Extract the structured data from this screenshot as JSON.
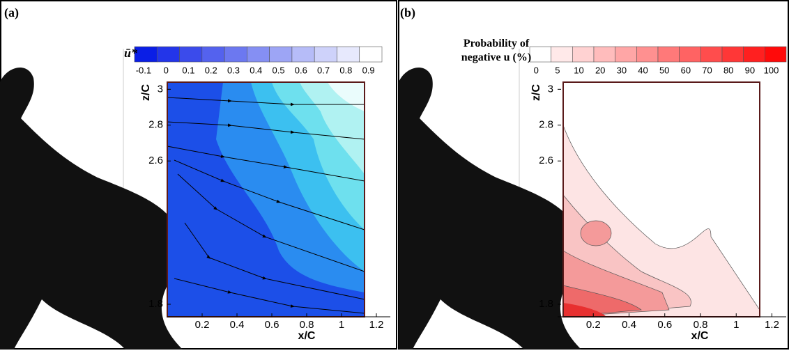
{
  "chart_data": [
    {
      "type": "contour",
      "panel_label": "(a)",
      "colorbar_label": "ū*",
      "colorbar_ticks": [
        -0.1,
        0,
        0.1,
        0.2,
        0.3,
        0.4,
        0.5,
        0.6,
        0.7,
        0.8,
        0.9
      ],
      "colormap": [
        "#0a1ee6",
        "#ffffff"
      ],
      "x_label": "x/C",
      "y_label": "z/C",
      "xlim": [
        0,
        1.28
      ],
      "ylim": [
        1.73,
        3.04
      ],
      "xticks": [
        0.2,
        0.4,
        0.6,
        0.8,
        1,
        1.2
      ],
      "yticks": [
        1.8,
        2.6,
        2.8,
        3
      ]
    },
    {
      "type": "contour",
      "panel_label": "(b)",
      "colorbar_label": "Probability of negative u (%)",
      "colorbar_ticks": [
        0,
        5,
        10,
        20,
        30,
        40,
        50,
        60,
        70,
        80,
        90,
        100
      ],
      "colormap": [
        "#ffffff",
        "#ff0a0a"
      ],
      "x_label": "x/C",
      "y_label": "z/C",
      "xlim": [
        0,
        1.28
      ],
      "ylim": [
        1.73,
        3.04
      ],
      "xticks": [
        0.2,
        0.4,
        0.6,
        0.8,
        1,
        1.2
      ],
      "yticks": [
        1.8,
        2.6,
        2.8,
        3
      ]
    }
  ]
}
